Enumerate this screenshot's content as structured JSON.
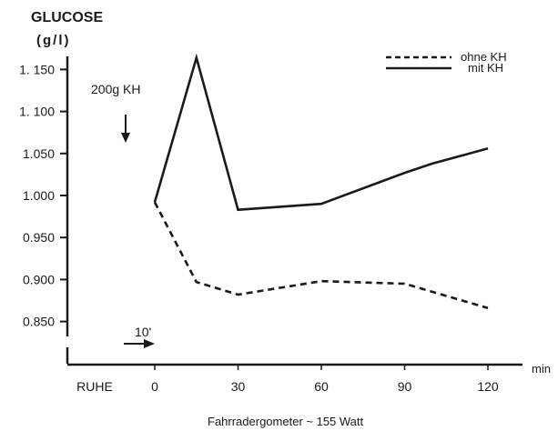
{
  "chart_data": {
    "type": "line",
    "title": "GLUCOSE",
    "ylabel": "(g/l)",
    "xlabel": "Fahrradergometer ~ 155 Watt",
    "x_unit": "min",
    "x_tick_labels": [
      "RUHE",
      "0",
      "30",
      "60",
      "90",
      "120"
    ],
    "x_tick_values": [
      null,
      0,
      30,
      60,
      90,
      120
    ],
    "y_tick_labels": [
      "1. 150",
      "1. 100",
      "1.050",
      "1.000",
      "0.950",
      "0.900",
      "0.850"
    ],
    "y_tick_values": [
      1.15,
      1.1,
      1.05,
      1.0,
      0.95,
      0.9,
      0.85
    ],
    "xlim": [
      -30,
      130
    ],
    "ylim": [
      0.85,
      1.17
    ],
    "series": [
      {
        "name": "ohne KH",
        "style": "dashed",
        "points": [
          [
            0,
            0.992
          ],
          [
            15,
            0.897
          ],
          [
            30,
            0.882
          ],
          [
            60,
            0.898
          ],
          [
            90,
            0.895
          ],
          [
            120,
            0.866
          ]
        ]
      },
      {
        "name": "mit KH",
        "style": "solid",
        "points": [
          [
            0,
            0.992
          ],
          [
            15,
            1.164
          ],
          [
            30,
            0.983
          ],
          [
            60,
            0.99
          ],
          [
            90,
            1.027
          ],
          [
            100,
            1.038
          ],
          [
            120,
            1.056
          ]
        ]
      }
    ],
    "annotations": {
      "dose_label": "200g KH",
      "interval_label": "10'"
    },
    "legend": {
      "position": "top-right"
    },
    "grid": false,
    "colors": {
      "ink": "#1a1a1a",
      "background": "#ffffff"
    }
  }
}
